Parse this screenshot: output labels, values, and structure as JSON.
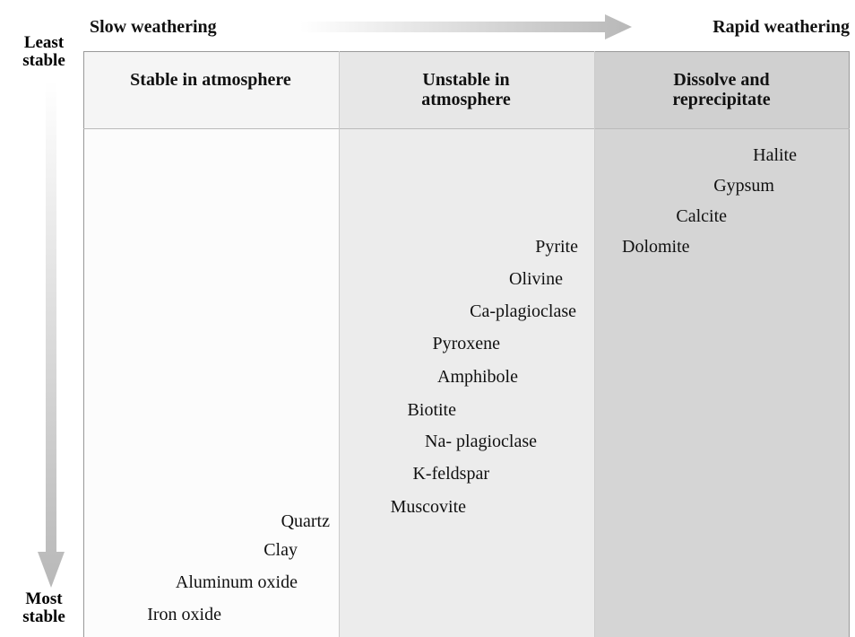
{
  "header": {
    "slow": "Slow weathering",
    "rapid": "Rapid weathering"
  },
  "axis": {
    "top": "Least stable",
    "bottom": "Most stable"
  },
  "columns": [
    {
      "title": "Stable in atmosphere",
      "minerals": [
        "Quartz",
        "Clay",
        "Aluminum oxide",
        "Iron oxide"
      ]
    },
    {
      "title": "Unstable in atmosphere",
      "minerals": [
        "Pyrite",
        "Olivine",
        "Ca-plagioclase",
        "Pyroxene",
        "Amphibole",
        "Biotite",
        "Na- plagioclase",
        "K-feldspar",
        "Muscovite"
      ]
    },
    {
      "title": "Dissolve and reprecipitate",
      "minerals": [
        "Halite",
        "Gypsum",
        "Calcite",
        "Dolomite"
      ]
    }
  ]
}
